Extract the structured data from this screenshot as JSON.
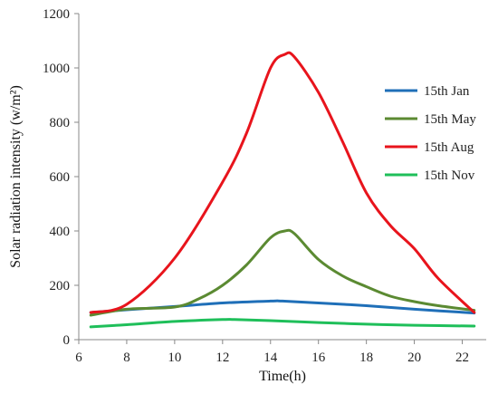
{
  "chart_data": {
    "type": "line",
    "xlabel": "Time(h)",
    "ylabel": "Solar radiation intensity (w/m²)",
    "xlim": [
      6,
      23
    ],
    "ylim": [
      0,
      1200
    ],
    "xticks": [
      6,
      8,
      10,
      12,
      14,
      16,
      18,
      20,
      22
    ],
    "yticks": [
      0,
      200,
      400,
      600,
      800,
      1000,
      1200
    ],
    "grid": false,
    "legend": "right",
    "series": [
      {
        "name": "15th Jan",
        "color": "#1f6fb8",
        "x": [
          6.5,
          8,
          10,
          12,
          14,
          14.5,
          16,
          18,
          20,
          22.5
        ],
        "y": [
          100,
          110,
          122,
          135,
          142,
          142,
          135,
          125,
          112,
          98
        ]
      },
      {
        "name": "15th May",
        "color": "#5b8a32",
        "x": [
          6.5,
          8,
          10,
          11,
          12,
          13,
          14,
          14.6,
          15,
          16,
          17,
          18,
          19,
          20,
          21,
          22.5
        ],
        "y": [
          90,
          112,
          120,
          150,
          200,
          275,
          375,
          400,
          390,
          295,
          235,
          195,
          160,
          140,
          125,
          108
        ]
      },
      {
        "name": "15th Aug",
        "color": "#e8141c",
        "x": [
          6.5,
          8,
          10,
          12,
          13,
          14,
          14.6,
          15,
          16,
          17,
          18,
          19,
          20,
          21,
          22.5
        ],
        "y": [
          100,
          130,
          300,
          580,
          760,
          1000,
          1050,
          1040,
          910,
          730,
          540,
          420,
          335,
          225,
          100
        ]
      },
      {
        "name": "15th Nov",
        "color": "#1fbf5a",
        "x": [
          6.5,
          8,
          10,
          12,
          12.5,
          14,
          16,
          18,
          20,
          22.5
        ],
        "y": [
          47,
          55,
          67,
          74,
          74,
          70,
          63,
          57,
          53,
          50
        ]
      }
    ]
  }
}
